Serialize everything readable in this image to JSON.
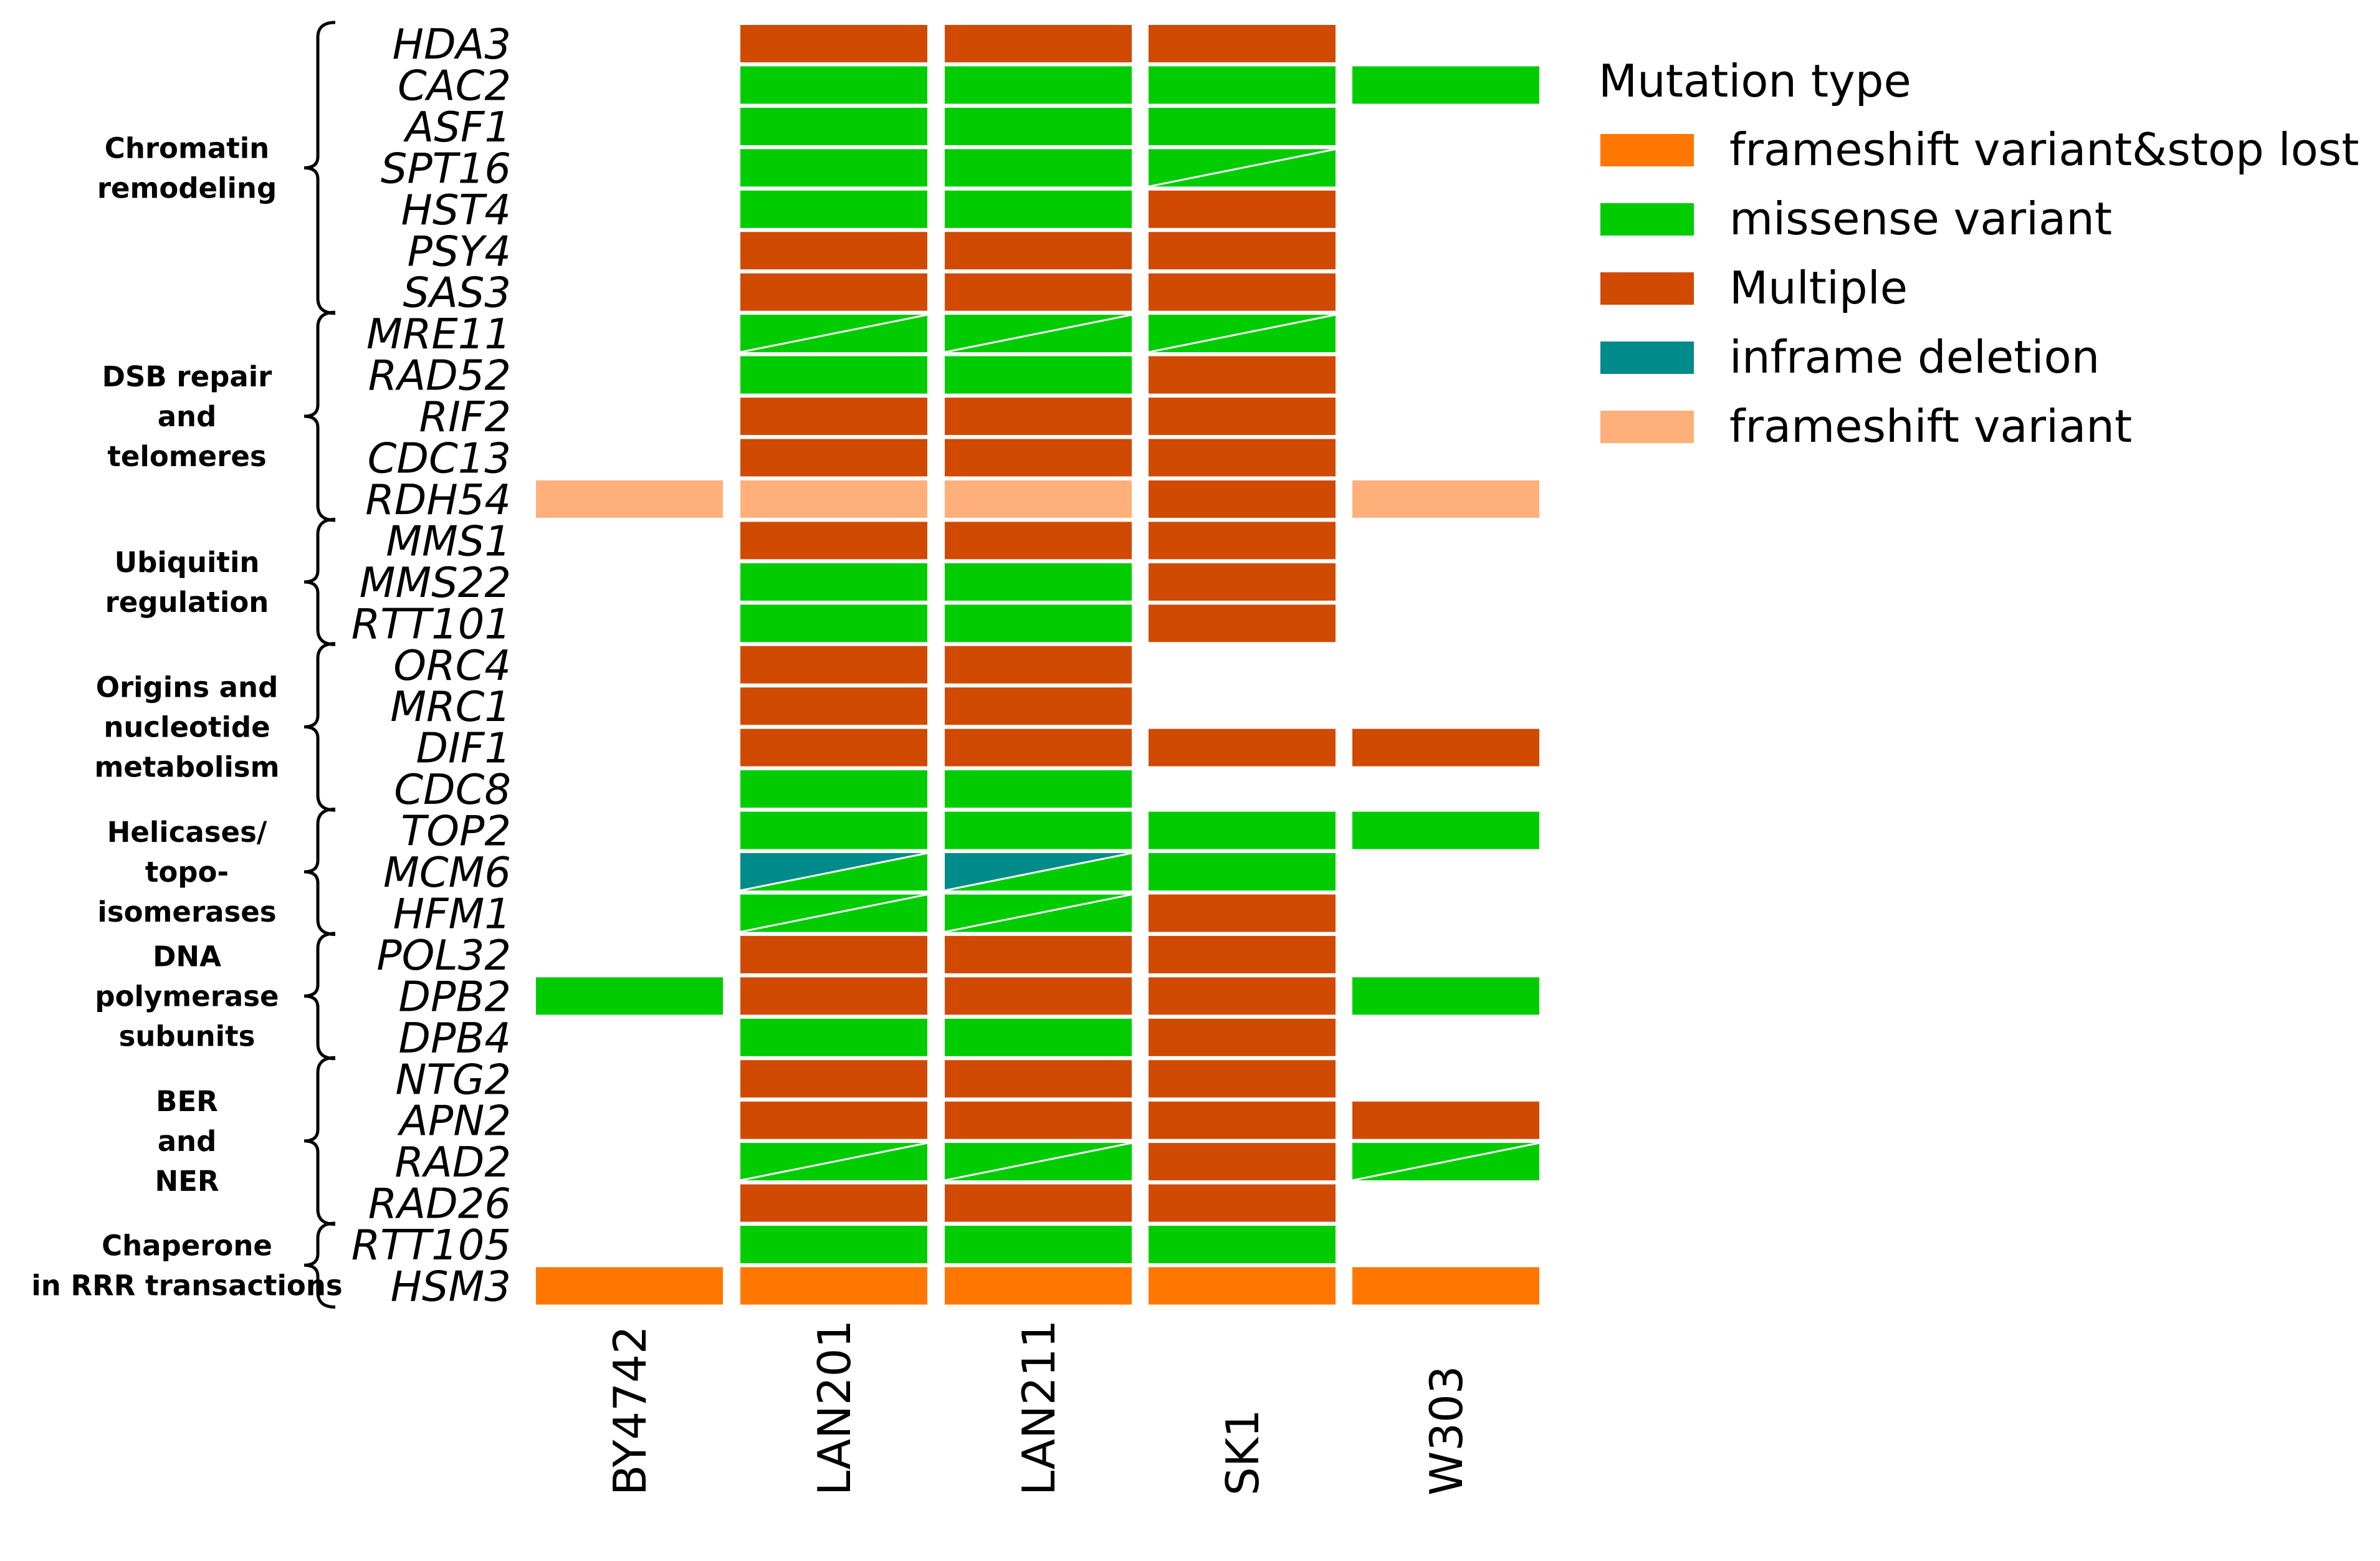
{
  "chart_data": {
    "type": "heatmap",
    "title": "",
    "columns": [
      "BY4742",
      "LAN201",
      "LAN211",
      "SK1",
      "W303"
    ],
    "genes": [
      "HDA3",
      "CAC2",
      "ASF1",
      "SPT16",
      "HST4",
      "PSY4",
      "SAS3",
      "MRE11",
      "RAD52",
      "RIF2",
      "CDC13",
      "RDH54",
      "MMS1",
      "MMS22",
      "RTT101",
      "ORC4",
      "MRC1",
      "DIF1",
      "CDC8",
      "TOP2",
      "MCM6",
      "HFM1",
      "POL32",
      "DPB2",
      "DPB4",
      "NTG2",
      "APN2",
      "RAD2",
      "RAD26",
      "RTT105",
      "HSM3"
    ],
    "groups": [
      {
        "lines": [
          "Chromatin",
          "remodeling"
        ],
        "start": 0,
        "end": 6
      },
      {
        "lines": [
          "DSB repair",
          "and",
          "telomeres"
        ],
        "start": 7,
        "end": 11
      },
      {
        "lines": [
          "Ubiquitin",
          "regulation"
        ],
        "start": 12,
        "end": 14
      },
      {
        "lines": [
          "Origins and",
          "nucleotide",
          "metabolism"
        ],
        "start": 15,
        "end": 18
      },
      {
        "lines": [
          "Helicases/",
          "topo-",
          "isomerases"
        ],
        "start": 19,
        "end": 21
      },
      {
        "lines": [
          "DNA",
          "polymerase",
          "subunits"
        ],
        "start": 22,
        "end": 24
      },
      {
        "lines": [
          "BER",
          "and",
          "NER"
        ],
        "start": 25,
        "end": 28
      },
      {
        "lines": [
          "Chaperone",
          "in RRR transactions"
        ],
        "start": 29,
        "end": 30
      }
    ],
    "mutation_types": [
      {
        "key": "fs_stop",
        "label": "frameshift variant&stop lost",
        "color": "#FF7700"
      },
      {
        "key": "missense",
        "label": "missense variant",
        "color": "#00CC00"
      },
      {
        "key": "multiple",
        "label": "Multiple",
        "color": "#D04A02"
      },
      {
        "key": "inframe",
        "label": "inframe deletion",
        "color": "#008B8B"
      },
      {
        "key": "fs",
        "label": "frameshift variant",
        "color": "#FFB07A"
      }
    ],
    "legend_title": "Mutation type",
    "legend_position": "right",
    "cells": {
      "HDA3": [
        null,
        "multiple",
        "multiple",
        "multiple",
        null
      ],
      "CAC2": [
        null,
        "missense",
        "missense",
        "missense",
        "missense"
      ],
      "ASF1": [
        null,
        "missense",
        "missense",
        "missense",
        null
      ],
      "SPT16": [
        null,
        "missense",
        "missense",
        [
          "missense",
          "missense"
        ],
        null
      ],
      "HST4": [
        null,
        "missense",
        "missense",
        "multiple",
        null
      ],
      "PSY4": [
        null,
        "multiple",
        "multiple",
        "multiple",
        null
      ],
      "SAS3": [
        null,
        "multiple",
        "multiple",
        "multiple",
        null
      ],
      "MRE11": [
        null,
        [
          "missense",
          "missense"
        ],
        [
          "missense",
          "missense"
        ],
        [
          "missense",
          "missense"
        ],
        null
      ],
      "RAD52": [
        null,
        "missense",
        "missense",
        "multiple",
        null
      ],
      "RIF2": [
        null,
        "multiple",
        "multiple",
        "multiple",
        null
      ],
      "CDC13": [
        null,
        "multiple",
        "multiple",
        "multiple",
        null
      ],
      "RDH54": [
        "fs",
        "fs",
        "fs",
        "multiple",
        "fs"
      ],
      "MMS1": [
        null,
        "multiple",
        "multiple",
        "multiple",
        null
      ],
      "MMS22": [
        null,
        "missense",
        "missense",
        "multiple",
        null
      ],
      "RTT101": [
        null,
        "missense",
        "missense",
        "multiple",
        null
      ],
      "ORC4": [
        null,
        "multiple",
        "multiple",
        null,
        null
      ],
      "MRC1": [
        null,
        "multiple",
        "multiple",
        null,
        null
      ],
      "DIF1": [
        null,
        "multiple",
        "multiple",
        "multiple",
        "multiple"
      ],
      "CDC8": [
        null,
        "missense",
        "missense",
        null,
        null
      ],
      "TOP2": [
        null,
        "missense",
        "missense",
        "missense",
        "missense"
      ],
      "MCM6": [
        null,
        [
          "inframe",
          "missense"
        ],
        [
          "inframe",
          "missense"
        ],
        "missense",
        null
      ],
      "HFM1": [
        null,
        [
          "missense",
          "missense"
        ],
        [
          "missense",
          "missense"
        ],
        "multiple",
        null
      ],
      "POL32": [
        null,
        "multiple",
        "multiple",
        "multiple",
        null
      ],
      "DPB2": [
        "missense",
        "multiple",
        "multiple",
        "multiple",
        "missense"
      ],
      "DPB4": [
        null,
        "missense",
        "missense",
        "multiple",
        null
      ],
      "NTG2": [
        null,
        "multiple",
        "multiple",
        "multiple",
        null
      ],
      "APN2": [
        null,
        "multiple",
        "multiple",
        "multiple",
        "multiple"
      ],
      "RAD2": [
        null,
        [
          "missense",
          "missense"
        ],
        [
          "missense",
          "missense"
        ],
        "multiple",
        [
          "missense",
          "missense"
        ]
      ],
      "RAD26": [
        null,
        "multiple",
        "multiple",
        "multiple",
        null
      ],
      "RTT105": [
        null,
        "missense",
        "missense",
        "missense",
        null
      ],
      "HSM3": [
        "fs_stop",
        "fs_stop",
        "fs_stop",
        "fs_stop",
        "fs_stop"
      ]
    }
  }
}
